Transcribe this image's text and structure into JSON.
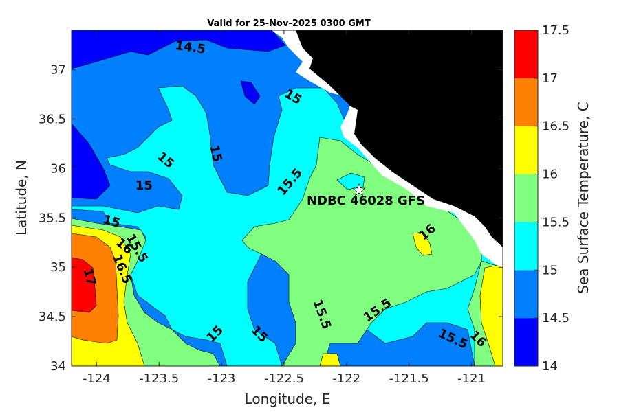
{
  "title": "Valid for 25-Nov-2025 0300 GMT",
  "xlabel": "Longitude, E",
  "ylabel": "Latitude, N",
  "colorbar_label": "Sea Surface Temperature, C",
  "station_label": "NDBC 46028 GFS",
  "station_marker": "white-star-icon",
  "chart_data": {
    "type": "heatmap",
    "xlim": [
      -124.2,
      -120.75
    ],
    "ylim": [
      34.0,
      37.4
    ],
    "x_ticks": [
      -124,
      -123.5,
      -123,
      -122.5,
      -122,
      -121.5,
      -121
    ],
    "x_tick_labels": [
      "-124",
      "-123.5",
      "-123",
      "-122.5",
      "-122",
      "-121.5",
      "-121"
    ],
    "y_ticks": [
      34,
      34.5,
      35,
      35.5,
      36,
      36.5,
      37
    ],
    "y_tick_labels": [
      "34",
      "34.5",
      "35",
      "35.5",
      "36",
      "36.5",
      "37"
    ],
    "levels": [
      14,
      14.5,
      15,
      15.5,
      16,
      16.5,
      17,
      17.5
    ],
    "level_labels": [
      "14",
      "14.5",
      "15",
      "15.5",
      "16",
      "16.5",
      "17",
      "17.5"
    ],
    "level_colors": [
      "#0000ff",
      "#0080ff",
      "#00ffff",
      "#80ff80",
      "#ffff00",
      "#ff8000",
      "#ff0000"
    ],
    "land_color": "#000000",
    "station": {
      "lon": -121.9,
      "lat": 35.78
    },
    "contour_labels": [
      {
        "text": "14.5",
        "lon": -123.25,
        "lat": 37.22,
        "angle": 8
      },
      {
        "text": "15",
        "lon": -122.43,
        "lat": 36.72,
        "angle": 30
      },
      {
        "text": "15",
        "lon": -123.45,
        "lat": 36.08,
        "angle": 40
      },
      {
        "text": "15",
        "lon": -123.05,
        "lat": 36.15,
        "angle": 75
      },
      {
        "text": "15",
        "lon": -123.62,
        "lat": 35.82,
        "angle": 0
      },
      {
        "text": "15",
        "lon": -123.88,
        "lat": 35.46,
        "angle": 15
      },
      {
        "text": "16",
        "lon": -123.78,
        "lat": 35.21,
        "angle": 40
      },
      {
        "text": "15.5",
        "lon": -123.68,
        "lat": 35.19,
        "angle": 60
      },
      {
        "text": "16.5",
        "lon": -123.8,
        "lat": 34.98,
        "angle": 68
      },
      {
        "text": "17",
        "lon": -124.06,
        "lat": 34.9,
        "angle": 75
      },
      {
        "text": "15.5",
        "lon": -122.45,
        "lat": 35.86,
        "angle": -50
      },
      {
        "text": "16",
        "lon": -121.35,
        "lat": 35.35,
        "angle": -40
      },
      {
        "text": "15.5",
        "lon": -121.75,
        "lat": 34.56,
        "angle": -35
      },
      {
        "text": "15.5",
        "lon": -122.2,
        "lat": 34.52,
        "angle": 70
      },
      {
        "text": "15",
        "lon": -122.7,
        "lat": 34.32,
        "angle": 45
      },
      {
        "text": "15",
        "lon": -123.05,
        "lat": 34.32,
        "angle": -45
      },
      {
        "text": "15.5",
        "lon": -121.15,
        "lat": 34.27,
        "angle": 25
      },
      {
        "text": "16",
        "lon": -120.95,
        "lat": 34.27,
        "angle": 45
      }
    ]
  }
}
